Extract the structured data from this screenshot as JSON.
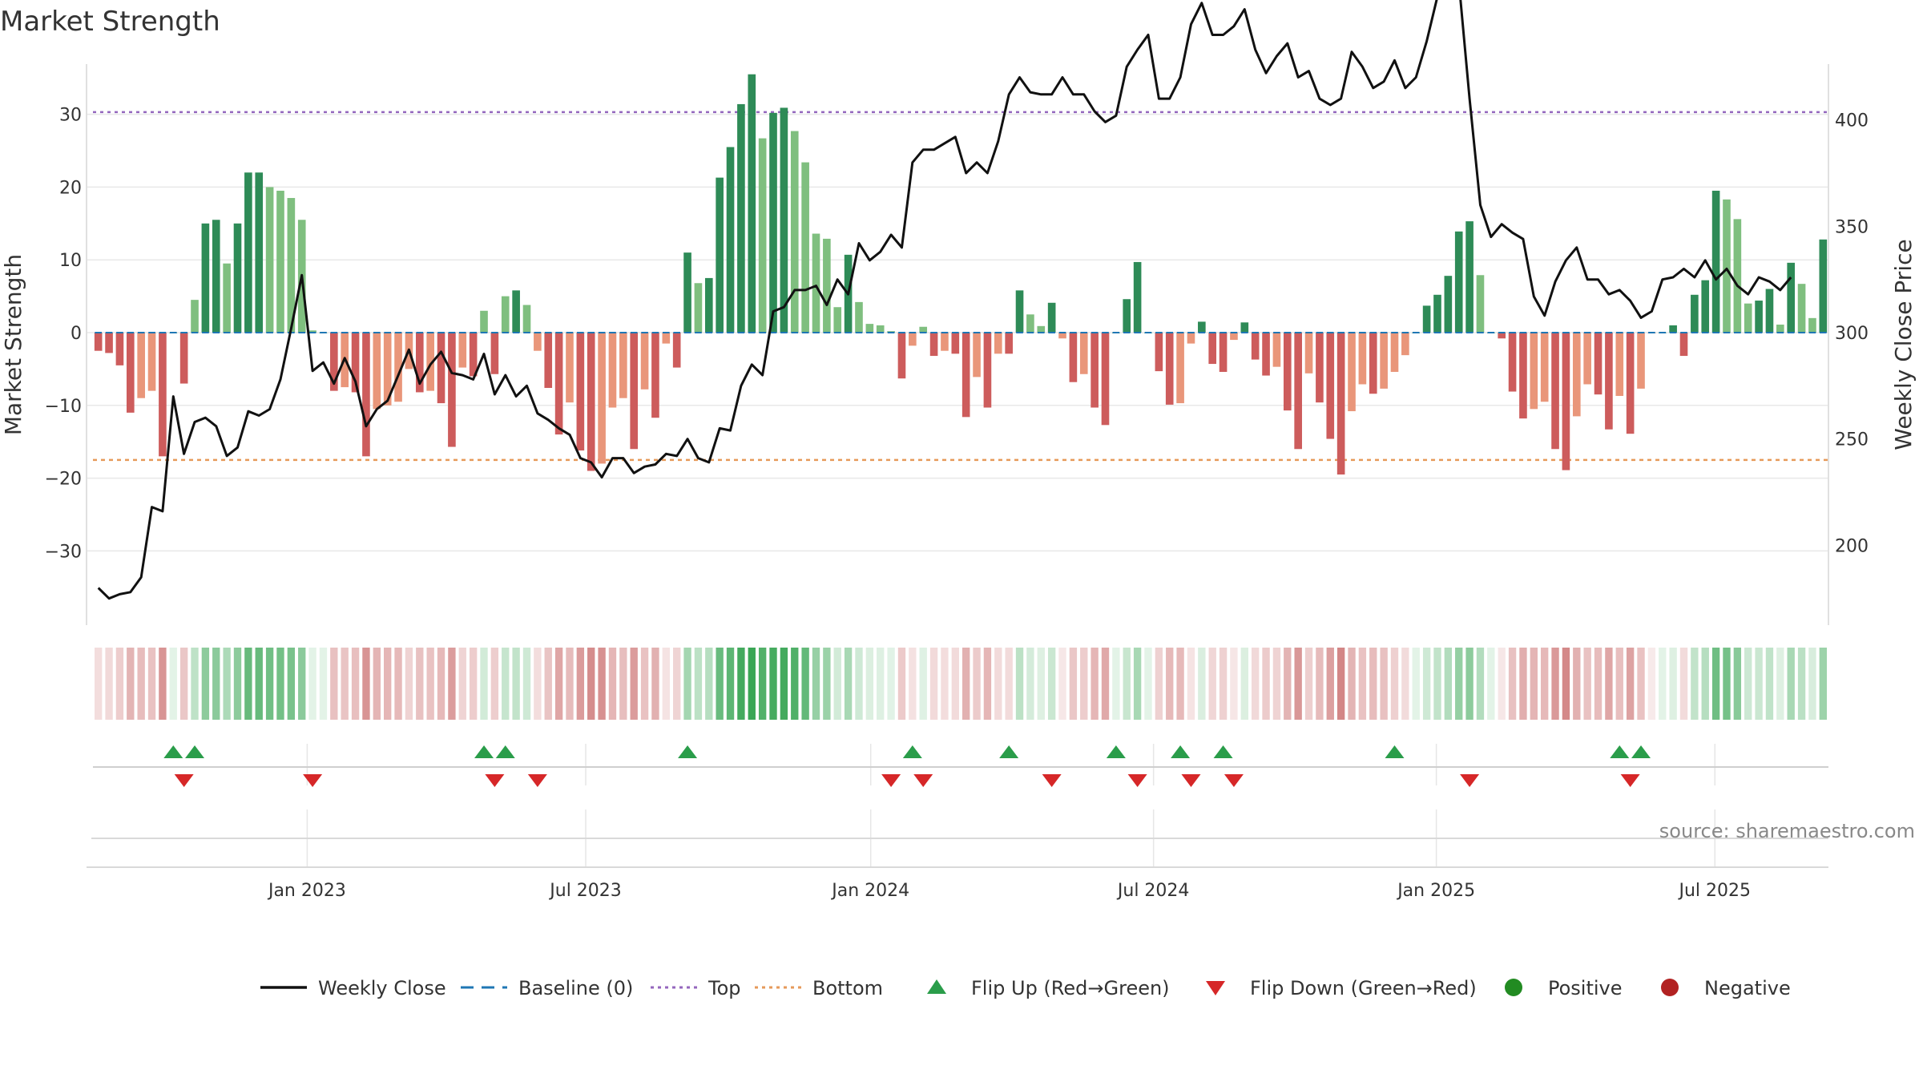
{
  "chart_data": {
    "type": "bar+line",
    "title": "Market Strength",
    "ylabel_left": "Market Strength",
    "ylabel_right": "Weekly Close Price",
    "left_yticks": [
      30,
      20,
      10,
      0,
      -10,
      -20,
      -30
    ],
    "left_ytick_labels": [
      "30",
      "20",
      "10",
      "0",
      "−10",
      "−20",
      "−30"
    ],
    "left_ylim": [
      -38,
      38
    ],
    "right_yticks": [
      400,
      350,
      300,
      250,
      200
    ],
    "right_ytick_labels": [
      "400",
      "350",
      "300",
      "250",
      "200"
    ],
    "right_ylim": [
      170,
      430
    ],
    "x_tick_labels": [
      "Jan 2023",
      "Jul 2023",
      "Jan 2024",
      "Jul 2024",
      "Jan 2025",
      "Jul 2025"
    ],
    "x_tick_index": [
      20,
      46,
      72.6,
      99,
      125.4,
      151.4
    ],
    "top_level": 30.3,
    "bottom_level": -17.5,
    "strength": [
      -2.5,
      -2.8,
      -4.5,
      -11,
      -9,
      -8,
      -17,
      0,
      -7,
      4.5,
      15,
      15.5,
      9.5,
      15,
      22,
      22,
      20,
      19.5,
      18.5,
      15.5,
      0.3,
      0,
      -8,
      -7.5,
      -8.2,
      -17,
      -10.5,
      -10,
      -9.5,
      -5,
      -8.2,
      -8,
      -9.7,
      -15.7,
      -4.8,
      -6,
      3,
      -5.7,
      5,
      5.8,
      3.8,
      -2.5,
      -7.6,
      -14,
      -9.6,
      -16.2,
      -19,
      -18,
      -10.3,
      -9,
      -16,
      -7.8,
      -11.7,
      -1.5,
      -4.8,
      11,
      6.8,
      7.5,
      21.3,
      25.5,
      31.4,
      35.5,
      26.7,
      30.2,
      30.9,
      27.7,
      23.4,
      13.6,
      12.9,
      3.5,
      10.7,
      4.2,
      1.2,
      1,
      0.2,
      -6.3,
      -1.8,
      0.8,
      -3.2,
      -2.5,
      -2.9,
      -11.6,
      -6.1,
      -10.3,
      -2.9,
      -2.9,
      5.8,
      2.5,
      0.9,
      4.1,
      -0.8,
      -6.8,
      -5.7,
      -10.3,
      -12.7,
      0,
      4.6,
      9.7,
      0,
      -5.3,
      -9.9,
      -9.7,
      -1.5,
      1.5,
      -4.3,
      -5.4,
      -1,
      1.4,
      -3.7,
      -5.9,
      -4.7,
      -10.7,
      -16,
      -5.6,
      -9.6,
      -14.6,
      -19.5,
      -10.8,
      -7.1,
      -8.4,
      -7.7,
      -5.4,
      -3.1,
      0,
      3.7,
      5.2,
      7.8,
      13.9,
      15.3,
      7.9,
      0,
      -0.8,
      -8.1,
      -11.8,
      -10.5,
      -9.5,
      -16,
      -18.9,
      -11.5,
      -7.1,
      -8.5,
      -13.3,
      -8.7,
      -13.9,
      -7.7,
      -0.1,
      0,
      1,
      -3.2,
      5.2,
      7.2,
      19.5,
      18.3,
      15.6,
      4,
      4.4,
      6,
      1.1,
      9.6,
      6.7,
      2,
      12.8
    ],
    "weekly_close": [
      180,
      175,
      177,
      178,
      185,
      218,
      216,
      270,
      243,
      258,
      260,
      256,
      242,
      246,
      263,
      261,
      264,
      278,
      302,
      327,
      282,
      286,
      276,
      288,
      277,
      256,
      264,
      268,
      280,
      292,
      276,
      285,
      291,
      281,
      280,
      278,
      290,
      271,
      280,
      270,
      275,
      262,
      259,
      255,
      252,
      241,
      239,
      232,
      241,
      241,
      234,
      237,
      238,
      243,
      242,
      250,
      241,
      239,
      255,
      254,
      275,
      285,
      280,
      310,
      312,
      320,
      320,
      322,
      313,
      325,
      318,
      342,
      334,
      338,
      346,
      340,
      380,
      386,
      386,
      389,
      392,
      375,
      380,
      375,
      390,
      412,
      420,
      413,
      412,
      412,
      420,
      412,
      412,
      404,
      399,
      402,
      425,
      433,
      440,
      410,
      410,
      420,
      445,
      455,
      440,
      440,
      444,
      452,
      433,
      422,
      430,
      436,
      420,
      423,
      410,
      407,
      410,
      432,
      425,
      415,
      418,
      428,
      415,
      420,
      437,
      458,
      457,
      465,
      410,
      360,
      345,
      351,
      347,
      344,
      317,
      308,
      324,
      334,
      340,
      325,
      325,
      318,
      320,
      315,
      307,
      310,
      325,
      326,
      330,
      326,
      334,
      325,
      330,
      322,
      318,
      326,
      324,
      320,
      326
    ],
    "baseline": 0,
    "heat_intensity": [
      0.23,
      0.26,
      0.34,
      0.51,
      0.45,
      0.41,
      0.72,
      0.14,
      0.38,
      0.33,
      0.58,
      0.59,
      0.42,
      0.58,
      0.77,
      0.77,
      0.72,
      0.71,
      0.68,
      0.59,
      0.14,
      0.14,
      0.42,
      0.4,
      0.43,
      0.72,
      0.5,
      0.49,
      0.47,
      0.3,
      0.42,
      0.41,
      0.47,
      0.66,
      0.29,
      0.34,
      0.23,
      0.33,
      0.29,
      0.31,
      0.25,
      0.23,
      0.4,
      0.6,
      0.46,
      0.67,
      0.77,
      0.74,
      0.49,
      0.44,
      0.67,
      0.41,
      0.53,
      0.19,
      0.29,
      0.46,
      0.34,
      0.37,
      0.76,
      0.82,
      0.95,
      1,
      0.88,
      0.94,
      0.95,
      0.89,
      0.79,
      0.53,
      0.51,
      0.23,
      0.44,
      0.25,
      0.18,
      0.17,
      0.15,
      0.36,
      0.2,
      0.16,
      0.25,
      0.23,
      0.24,
      0.53,
      0.35,
      0.49,
      0.24,
      0.24,
      0.34,
      0.22,
      0.17,
      0.27,
      0.16,
      0.38,
      0.34,
      0.49,
      0.58,
      0.14,
      0.28,
      0.44,
      0.14,
      0.31,
      0.47,
      0.47,
      0.19,
      0.19,
      0.28,
      0.31,
      0.17,
      0.18,
      0.26,
      0.35,
      0.3,
      0.51,
      0.7,
      0.33,
      0.46,
      0.65,
      0.82,
      0.51,
      0.41,
      0.45,
      0.42,
      0.32,
      0.24,
      0.14,
      0.25,
      0.31,
      0.39,
      0.54,
      0.58,
      0.39,
      0.14,
      0.16,
      0.42,
      0.55,
      0.5,
      0.47,
      0.69,
      0.8,
      0.53,
      0.41,
      0.45,
      0.6,
      0.43,
      0.63,
      0.41,
      0.14,
      0.14,
      0.17,
      0.24,
      0.31,
      0.37,
      0.73,
      0.7,
      0.6,
      0.26,
      0.27,
      0.32,
      0.17,
      0.44,
      0.35,
      0.2,
      0.5
    ],
    "flip_up_index": [
      7,
      9,
      36,
      38,
      55,
      76,
      85,
      95,
      101,
      105,
      121,
      142,
      144
    ],
    "flip_down_index": [
      8,
      20,
      37,
      41,
      74,
      77,
      89,
      97,
      102,
      106,
      128,
      143
    ]
  },
  "legend": [
    {
      "label": "Weekly Close",
      "kind": "line",
      "color": "#111111"
    },
    {
      "label": "Baseline (0)",
      "kind": "dash",
      "color": "#1f77b4"
    },
    {
      "label": "Top",
      "kind": "dot",
      "color": "#9467bd"
    },
    {
      "label": "Bottom",
      "kind": "dot",
      "color": "#e69a5a"
    },
    {
      "label": "Flip Up (Red→Green)",
      "kind": "tri-up",
      "color": "#2a9d4a"
    },
    {
      "label": "Flip Down (Green→Red)",
      "kind": "tri-down",
      "color": "#d62728"
    },
    {
      "label": "Positive",
      "kind": "circle",
      "color": "#228b22"
    },
    {
      "label": "Negative",
      "kind": "circle",
      "color": "#b22222"
    }
  ],
  "source": "source: sharemaestro.com",
  "colors": {
    "pos_dark": "#2e8b57",
    "pos_light": "#7fbf7f",
    "neg_dark": "#cd5c5c",
    "neg_light": "#e9967a",
    "heat_pos": "#3aa655",
    "heat_neg": "#c96b6b",
    "grid": "#e8e8e8"
  }
}
